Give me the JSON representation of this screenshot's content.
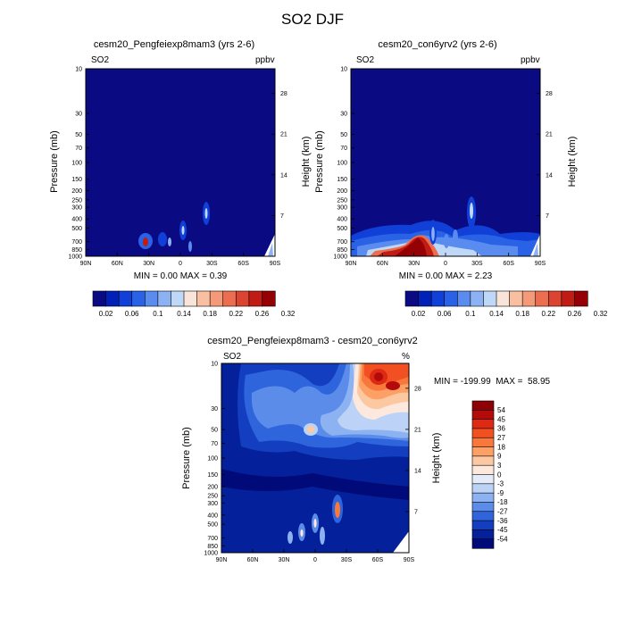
{
  "figure_title": "SO2 DJF",
  "chart_data": [
    {
      "type": "heatmap",
      "title": "cesm20_Pengfeiexp8mam3 (yrs 2-6)",
      "variable": "SO2",
      "units": "ppbv",
      "ylabel": "Pressure (mb)",
      "ylabel_right": "Height (km)",
      "x_ticks": [
        "90N",
        "60N",
        "30N",
        "0",
        "30S",
        "60S",
        "90S"
      ],
      "y_ticks": [
        "10",
        "30",
        "50",
        "70",
        "100",
        "150",
        "200",
        "250",
        "300",
        "400",
        "500",
        "700",
        "850",
        "1000"
      ],
      "y_ticks_right": [
        "28",
        "21",
        "14",
        "7"
      ],
      "stats": "MIN =   0.00   MAX =   0.39",
      "colorbar_labels": [
        "0.02",
        "0.06",
        "0.1",
        "0.14",
        "0.18",
        "0.22",
        "0.26",
        "0.32"
      ]
    },
    {
      "type": "heatmap",
      "title": "cesm20_con6yrv2 (yrs 2-6)",
      "variable": "SO2",
      "units": "ppbv",
      "ylabel": "Pressure (mb)",
      "ylabel_right": "Height (km)",
      "x_ticks": [
        "90N",
        "60N",
        "30N",
        "0",
        "30S",
        "60S",
        "90S"
      ],
      "y_ticks": [
        "10",
        "30",
        "50",
        "70",
        "100",
        "150",
        "200",
        "250",
        "300",
        "400",
        "500",
        "700",
        "850",
        "1000"
      ],
      "y_ticks_right": [
        "28",
        "21",
        "14",
        "7"
      ],
      "stats": "MIN =   0.00   MAX =   2.23",
      "colorbar_labels": [
        "0.02",
        "0.06",
        "0.1",
        "0.14",
        "0.18",
        "0.22",
        "0.26",
        "0.32"
      ]
    },
    {
      "type": "heatmap",
      "title": "cesm20_Pengfeiexp8mam3 - cesm20_con6yrv2",
      "variable": "SO2",
      "units": "%",
      "ylabel": "Pressure (mb)",
      "ylabel_right": "Height (km)",
      "x_ticks": [
        "90N",
        "60N",
        "30N",
        "0",
        "30S",
        "60S",
        "90S"
      ],
      "y_ticks": [
        "10",
        "30",
        "50",
        "70",
        "100",
        "150",
        "200",
        "250",
        "300",
        "400",
        "500",
        "700",
        "850",
        "1000"
      ],
      "y_ticks_right": [
        "28",
        "21",
        "14",
        "7"
      ],
      "stats": "MIN = -199.99  MAX =  58.95",
      "colorbar_labels": [
        "54",
        "45",
        "36",
        "27",
        "18",
        "9",
        "3",
        "0",
        "-3",
        "-9",
        "-18",
        "-27",
        "-36",
        "-45",
        "-54"
      ]
    }
  ],
  "colors": {
    "seq": [
      "#0a0a82",
      "#0020b8",
      "#1040d8",
      "#2a62e6",
      "#5a8cf0",
      "#8cb2f4",
      "#c0d8f8",
      "#f8e4d8",
      "#f8c0a0",
      "#f49a78",
      "#ec6e50",
      "#dc4432",
      "#c01c14",
      "#940004"
    ],
    "div": [
      "#8c0006",
      "#b40a0a",
      "#dc2a14",
      "#f25022",
      "#f8783c",
      "#fca066",
      "#fcc8a2",
      "#fce8dc",
      "#e4ecfa",
      "#bcd2f6",
      "#8cb2f2",
      "#5c8cea",
      "#2e64dc",
      "#143ec0",
      "#04209a",
      "#000a78"
    ]
  }
}
